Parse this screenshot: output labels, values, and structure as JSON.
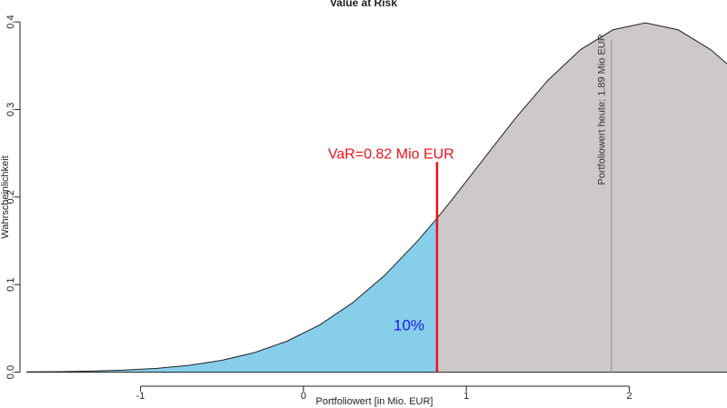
{
  "chart_data": {
    "type": "density",
    "title": "Value at Risk",
    "xlabel": "Portfoliowert [in Mio. EUR]",
    "ylabel": "Wahrscheinlichkeit",
    "x": [
      -1.7,
      -1.5,
      -1.3,
      -1.1,
      -0.9,
      -0.7,
      -0.5,
      -0.3,
      -0.1,
      0.1,
      0.3,
      0.5,
      0.7,
      0.82,
      0.9,
      1.1,
      1.3,
      1.5,
      1.7,
      1.9,
      2.1,
      2.3,
      2.5,
      2.6
    ],
    "values": [
      0.0003,
      0.0006,
      0.0012,
      0.0024,
      0.0044,
      0.0079,
      0.0136,
      0.0224,
      0.0355,
      0.054,
      0.079,
      0.1109,
      0.1497,
      0.1758,
      0.1942,
      0.242,
      0.2897,
      0.3332,
      0.3683,
      0.391,
      0.3989,
      0.391,
      0.3683,
      0.3521
    ],
    "tail_color": "#87ceeb",
    "rest_color": "#cdc9c9",
    "xlim": [
      -1.74,
      2.6
    ],
    "ylim": [
      -0.016,
      0.425
    ],
    "xticks": [
      -1,
      0,
      1,
      2
    ],
    "yticks": [
      {
        "value": 0,
        "label": "0.0"
      },
      0.1,
      0.2,
      0.3,
      0.4
    ],
    "markers": [
      {
        "x": 0.82,
        "y_top": 0.24,
        "color": "#e8131a",
        "label": "VaR=0.82 Mio EUR"
      },
      {
        "x": 1.89,
        "y_top": 0.38,
        "color": "#9a9a9a",
        "label": "Portfoliowert heute: 1.89 Mio EUR"
      }
    ],
    "tail_label": "10%",
    "tail_label_color": "#1a1ae6"
  }
}
